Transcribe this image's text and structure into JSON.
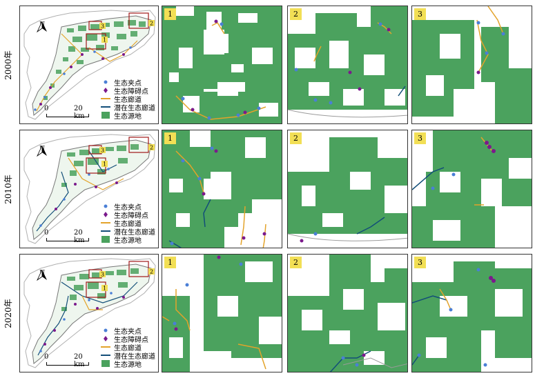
{
  "rows": [
    {
      "year_label": "2000年"
    },
    {
      "year_label": "2010年"
    },
    {
      "year_label": "2020年"
    }
  ],
  "overview": {
    "north_label": "N",
    "scale_zero": "0",
    "scale_dist": "20 km",
    "callouts": [
      "1",
      "2",
      "3"
    ]
  },
  "legend": [
    {
      "label": "生态夹点",
      "symbol": "dot-blue"
    },
    {
      "label": "生态障碍点",
      "symbol": "diamond-purple"
    },
    {
      "label": "生态廊道",
      "symbol": "line-orange"
    },
    {
      "label": "潜在生态廊道",
      "symbol": "line-navy"
    },
    {
      "label": "生态源地",
      "symbol": "square-green"
    }
  ],
  "zoom_labels": [
    "1",
    "2",
    "3"
  ],
  "colors": {
    "source_green": "#4ba25e",
    "corridor_orange": "#e3a32a",
    "potential_navy": "#124e78",
    "pinch_blue": "#4a7fd6",
    "barrier_purple": "#7b1a8c",
    "boundary_gray": "#9a9a9a",
    "badge_yellow": "#f2df55"
  }
}
